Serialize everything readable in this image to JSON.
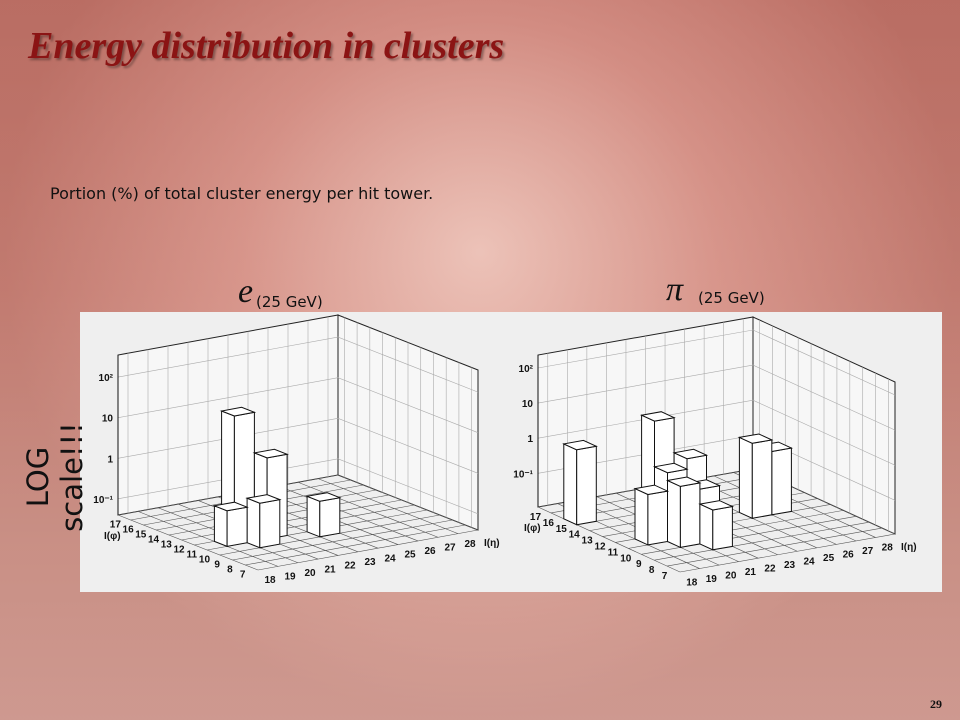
{
  "title": "Energy distribution in clusters",
  "subtitle": "Portion (%) of total cluster energy per hit tower.",
  "side_note": "LOG scale!!!",
  "page_number": "29",
  "plots": [
    {
      "type": "lego",
      "symbol": "e",
      "label": "(25 GeV)",
      "x_label": "I(η)",
      "y_label": "I(φ)",
      "xlim": [
        17.5,
        28.5
      ],
      "ylim": [
        6.5,
        17.5
      ],
      "zlim": [
        0.04,
        350
      ],
      "z_log": true,
      "xticks": [
        18,
        19,
        20,
        21,
        22,
        23,
        24,
        25,
        26,
        27,
        28
      ],
      "yticks": [
        7,
        8,
        9,
        10,
        11,
        12,
        13,
        14,
        15,
        16,
        17
      ],
      "zticks": [
        {
          "value": 0.1,
          "label": "10⁻¹"
        },
        1,
        10,
        {
          "value": 100,
          "label": "10²"
        }
      ],
      "bars": [
        {
          "x": 20,
          "y": 12,
          "value": 40
        },
        {
          "x": 21,
          "y": 11,
          "value": 4
        },
        {
          "x": 20,
          "y": 10,
          "value": 0.5
        },
        {
          "x": 23,
          "y": 10,
          "value": 0.3
        },
        {
          "x": 19,
          "y": 11,
          "value": 0.3
        }
      ]
    },
    {
      "type": "lego",
      "symbol": "π",
      "label": "(25 GeV)",
      "x_label": "I(η)",
      "y_label": "I(φ)",
      "xlim": [
        17.5,
        28.5
      ],
      "ylim": [
        6.5,
        17.5
      ],
      "zlim": [
        0.011,
        235
      ],
      "z_log": true,
      "xticks": [
        18,
        19,
        20,
        21,
        22,
        23,
        24,
        25,
        26,
        27,
        28
      ],
      "yticks": [
        7,
        8,
        9,
        10,
        11,
        12,
        13,
        14,
        15,
        16,
        17
      ],
      "zticks": [
        {
          "value": 0.1,
          "label": "10⁻¹"
        },
        1,
        10,
        {
          "value": 100,
          "label": "10²"
        }
      ],
      "bars": [
        {
          "x": 18,
          "y": 15,
          "value": 1.5
        },
        {
          "x": 20,
          "y": 12,
          "value": 20
        },
        {
          "x": 21,
          "y": 11,
          "value": 2
        },
        {
          "x": 20,
          "y": 11,
          "value": 1
        },
        {
          "x": 20,
          "y": 10,
          "value": 0.6
        },
        {
          "x": 21,
          "y": 10,
          "value": 0.4
        },
        {
          "x": 19,
          "y": 11,
          "value": 0.3
        },
        {
          "x": 21,
          "y": 9,
          "value": 0.15
        },
        {
          "x": 25,
          "y": 12,
          "value": 1.5
        },
        {
          "x": 26,
          "y": 12,
          "value": 0.7
        }
      ]
    }
  ]
}
